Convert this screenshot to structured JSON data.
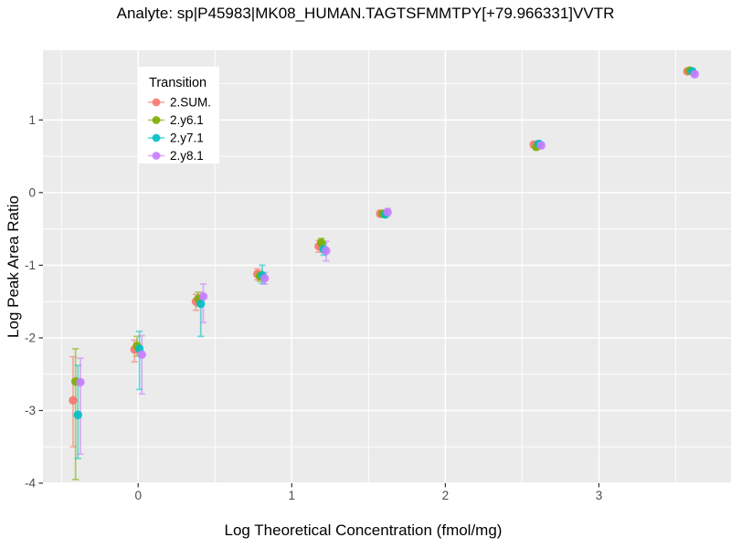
{
  "title": "Analyte: sp|P45983|MK08_HUMAN.TAGTSFMMTPY[+79.966331]VVTR",
  "chart_data": {
    "type": "scatter",
    "subtype": "pointrange-with-error-bars",
    "title": "Analyte: sp|P45983|MK08_HUMAN.TAGTSFMMTPY[+79.966331]VVTR",
    "xlabel": "Log Theoretical Concentration (fmol/mg)",
    "ylabel": "Log Peak Area Ratio",
    "x_ticks": [
      0,
      1,
      2,
      3
    ],
    "y_ticks": [
      1,
      0,
      -1,
      -2,
      -3,
      -4
    ],
    "x_minor_ticks": [
      -0.5,
      0.5,
      1.5,
      2.5,
      3.5
    ],
    "y_minor_ticks": [
      1.5,
      0.5,
      -0.5,
      -1.5,
      -2.5,
      -3.5
    ],
    "xlim": [
      -0.62,
      3.86
    ],
    "ylim": [
      -4.0,
      1.96
    ],
    "grid": true,
    "panel_bg": "#EBEBEB",
    "grid_color": "#FFFFFF",
    "tick_color": "#333333",
    "tick_label_color": "#4D4D4D",
    "legend_title": "Transition",
    "legend_position": "top-left-inside",
    "legend_bg": "#FFFFFF",
    "x_values": [
      -0.4,
      0,
      0.4,
      0.8,
      1.2,
      1.6,
      2.6,
      3.6
    ],
    "series": [
      {
        "name": "2.SUM.",
        "color": "#F8766D",
        "points": [
          {
            "x": -0.4,
            "y": -2.86,
            "ymin": -3.5,
            "ymax": -2.26
          },
          {
            "x": 0.0,
            "y": -2.16,
            "ymin": -2.33,
            "ymax": -2.03
          },
          {
            "x": 0.4,
            "y": -1.5,
            "ymin": -1.62,
            "ymax": -1.4
          },
          {
            "x": 0.8,
            "y": -1.12,
            "ymin": -1.2,
            "ymax": -1.05
          },
          {
            "x": 1.2,
            "y": -0.74,
            "ymin": -0.82,
            "ymax": -0.66
          },
          {
            "x": 1.6,
            "y": -0.29,
            "ymin": -0.33,
            "ymax": -0.25
          },
          {
            "x": 2.6,
            "y": 0.66,
            "ymin": 0.62,
            "ymax": 0.7
          },
          {
            "x": 3.6,
            "y": 1.67,
            "ymin": 1.64,
            "ymax": 1.7
          }
        ]
      },
      {
        "name": "2.y6.1",
        "color": "#7CAE00",
        "points": [
          {
            "x": -0.4,
            "y": -2.6,
            "ymin": -3.95,
            "ymax": -2.15
          },
          {
            "x": 0.0,
            "y": -2.11,
            "ymin": -2.25,
            "ymax": -1.98
          },
          {
            "x": 0.4,
            "y": -1.46,
            "ymin": -1.56,
            "ymax": -1.37
          },
          {
            "x": 0.8,
            "y": -1.15,
            "ymin": -1.22,
            "ymax": -1.08
          },
          {
            "x": 1.2,
            "y": -0.69,
            "ymin": -0.76,
            "ymax": -0.63
          },
          {
            "x": 1.6,
            "y": -0.29,
            "ymin": -0.33,
            "ymax": -0.25
          },
          {
            "x": 2.6,
            "y": 0.63,
            "ymin": 0.59,
            "ymax": 0.67
          },
          {
            "x": 3.6,
            "y": 1.68,
            "ymin": 1.65,
            "ymax": 1.71
          }
        ]
      },
      {
        "name": "2.y7.1",
        "color": "#00BFC4",
        "points": [
          {
            "x": -0.4,
            "y": -3.06,
            "ymin": -3.66,
            "ymax": -2.38
          },
          {
            "x": 0.0,
            "y": -2.15,
            "ymin": -2.71,
            "ymax": -1.91
          },
          {
            "x": 0.4,
            "y": -1.53,
            "ymin": -1.98,
            "ymax": -1.44
          },
          {
            "x": 0.8,
            "y": -1.14,
            "ymin": -1.25,
            "ymax": -1.0
          },
          {
            "x": 1.2,
            "y": -0.78,
            "ymin": -0.86,
            "ymax": -0.7
          },
          {
            "x": 1.6,
            "y": -0.3,
            "ymin": -0.34,
            "ymax": -0.26
          },
          {
            "x": 2.6,
            "y": 0.67,
            "ymin": 0.63,
            "ymax": 0.71
          },
          {
            "x": 3.6,
            "y": 1.67,
            "ymin": 1.64,
            "ymax": 1.7
          }
        ]
      },
      {
        "name": "2.y8.1",
        "color": "#C77CFF",
        "points": [
          {
            "x": -0.4,
            "y": -2.61,
            "ymin": -3.6,
            "ymax": -2.28
          },
          {
            "x": 0.0,
            "y": -2.23,
            "ymin": -2.77,
            "ymax": -1.97
          },
          {
            "x": 0.4,
            "y": -1.43,
            "ymin": -1.79,
            "ymax": -1.26
          },
          {
            "x": 0.8,
            "y": -1.18,
            "ymin": -1.26,
            "ymax": -1.1
          },
          {
            "x": 1.2,
            "y": -0.8,
            "ymin": -0.94,
            "ymax": -0.67
          },
          {
            "x": 1.6,
            "y": -0.27,
            "ymin": -0.32,
            "ymax": -0.22
          },
          {
            "x": 2.6,
            "y": 0.65,
            "ymin": 0.61,
            "ymax": 0.69
          },
          {
            "x": 3.6,
            "y": 1.63,
            "ymin": 1.6,
            "ymax": 1.66
          }
        ]
      }
    ]
  }
}
